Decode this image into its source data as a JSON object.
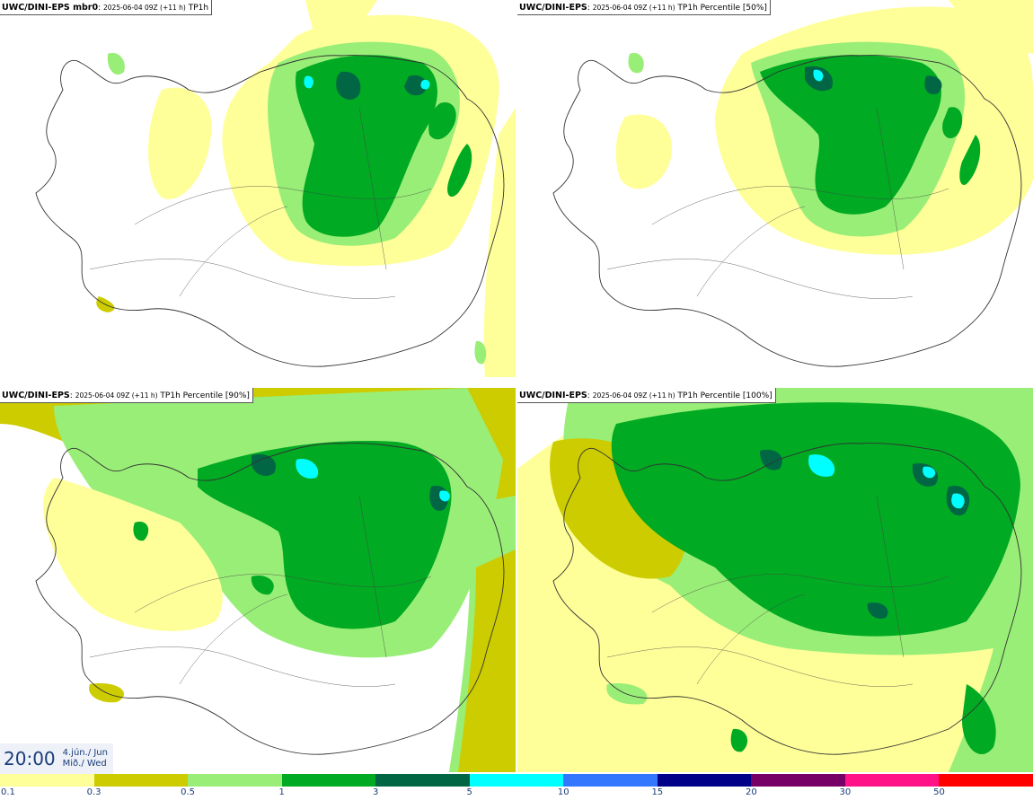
{
  "panels": [
    {
      "model": "UWC/DINI-EPS mbr0",
      "run": "2025-06-04 09Z (+11 h)",
      "field": "TP1h"
    },
    {
      "model": "UWC/DINI-EPS",
      "run": "2025-06-04 09Z (+11 h)",
      "field": "TP1h Percentile [50%]"
    },
    {
      "model": "UWC/DINI-EPS",
      "run": "2025-06-04 09Z (+11 h)",
      "field": "TP1h Percentile [90%]"
    },
    {
      "model": "UWC/DINI-EPS",
      "run": "2025-06-04 09Z (+11 h)",
      "field": "TP1h Percentile [100%]"
    }
  ],
  "valid_time": {
    "hour": "20:00",
    "date": "4.jún./ Jun",
    "weekday": "Mið./ Wed"
  },
  "colorbar": {
    "labels": [
      "0.1",
      "0.3",
      "0.5",
      "1",
      "3",
      "5",
      "10",
      "15",
      "20",
      "30",
      "50"
    ],
    "colors": [
      "#ffff99",
      "#cccc00",
      "#99ee77",
      "#00aa22",
      "#006644",
      "#00ffff",
      "#3377ff",
      "#000088",
      "#770066",
      "#ff1188",
      "#ff0000"
    ]
  },
  "palette": {
    "light": "#ffff99",
    "olive": "#cccc00",
    "lightgreen": "#99ee77",
    "green": "#00aa22",
    "dark": "#006644",
    "cyan": "#00ffff"
  }
}
